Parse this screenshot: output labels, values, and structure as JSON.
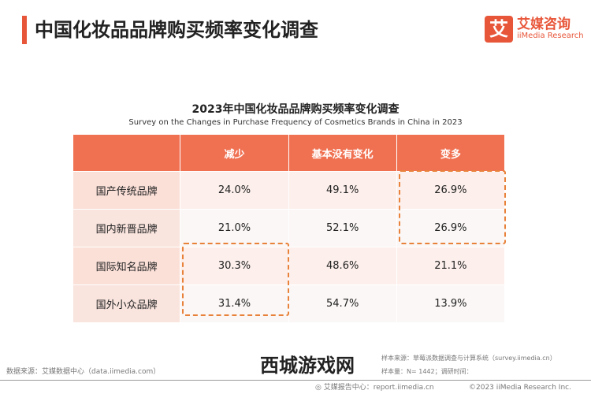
{
  "header": {
    "title": "中国化妆品品牌购买频率变化调查"
  },
  "logo": {
    "mark": "艾",
    "cn": "艾媒咨询",
    "en": "iiMedia Research"
  },
  "chart_data": {
    "type": "table",
    "title": "2023年中国化妆品品牌购买频率变化调查",
    "subtitle": "Survey on the Changes in Purchase Frequency of Cosmetics Brands in China in 2023",
    "columns": [
      "",
      "减少",
      "基本没有变化",
      "变多"
    ],
    "rows": [
      {
        "label": "国产传统品牌",
        "values": [
          "24.0%",
          "49.1%",
          "26.9%"
        ]
      },
      {
        "label": "国内新晋品牌",
        "values": [
          "21.0%",
          "52.1%",
          "26.9%"
        ]
      },
      {
        "label": "国际知名品牌",
        "values": [
          "30.3%",
          "48.6%",
          "21.1%"
        ]
      },
      {
        "label": "国外小众品牌",
        "values": [
          "31.4%",
          "54.7%",
          "13.9%"
        ]
      }
    ],
    "highlight_color": "#e8823a"
  },
  "footer": {
    "data_source": "数据来源：艾媒数据中心（data.iimedia.com）",
    "sample_source": "样本来源：草莓派数据调查与计算系统（survey.iimedia.cn）",
    "sample_size": "样本量：N= 1442；调研时间：",
    "report_center": "艾媒报告中心：report.iimedia.cn",
    "copyright": "©2023 iiMedia Research Inc.",
    "watermark": "西城游戏网"
  }
}
